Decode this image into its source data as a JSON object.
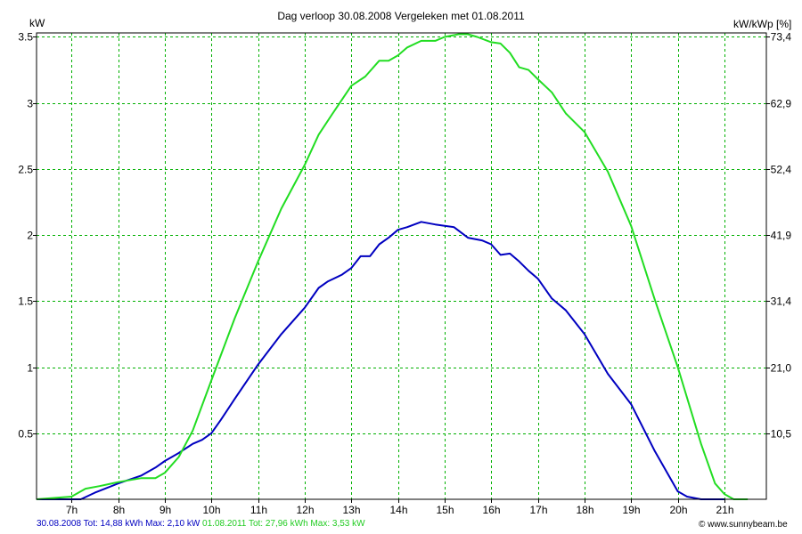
{
  "chart_data": {
    "type": "line",
    "title": "Dag  verloop 30.08.2008   Vergeleken met 01.08.2011",
    "ylabel_left": "kW",
    "ylabel_right": "kW/kWp [%]",
    "x_ticks": [
      "7h",
      "8h",
      "9h",
      "10h",
      "11h",
      "12h",
      "13h",
      "14h",
      "15h",
      "16h",
      "17h",
      "18h",
      "19h",
      "20h",
      "21h"
    ],
    "xlim": [
      6.25,
      21.9
    ],
    "ylim": [
      0,
      3.53
    ],
    "y_ticks": [
      0.5,
      1,
      1.5,
      2,
      2.5,
      3,
      3.5
    ],
    "y_tick_labels": [
      "0.5",
      "1",
      "1.5",
      "2",
      "2.5",
      "3",
      "3.5"
    ],
    "y_right_ticks": [
      0.5,
      1,
      1.5,
      2,
      2.5,
      3,
      3.5
    ],
    "y_right_tick_labels": [
      "10,5",
      "21,0",
      "31,4",
      "41,9",
      "52,4",
      "62,9",
      "73,4"
    ],
    "grid": true,
    "series": [
      {
        "name": "30.08.2008",
        "color": "#0000c0",
        "x": [
          6.25,
          7.0,
          7.2,
          7.5,
          8.0,
          8.5,
          8.8,
          9.0,
          9.3,
          9.6,
          9.8,
          10.0,
          10.2,
          10.5,
          11.0,
          11.5,
          12.0,
          12.3,
          12.5,
          12.8,
          13.0,
          13.2,
          13.4,
          13.6,
          13.8,
          14.0,
          14.2,
          14.5,
          14.8,
          15.0,
          15.2,
          15.5,
          15.8,
          16.0,
          16.2,
          16.4,
          16.6,
          16.8,
          17.0,
          17.3,
          17.6,
          18.0,
          18.5,
          19.0,
          19.5,
          20.0,
          20.2,
          20.5,
          21.0
        ],
        "values": [
          0,
          0,
          0,
          0.05,
          0.12,
          0.18,
          0.24,
          0.29,
          0.35,
          0.42,
          0.45,
          0.5,
          0.6,
          0.76,
          1.02,
          1.25,
          1.45,
          1.6,
          1.65,
          1.7,
          1.75,
          1.84,
          1.84,
          1.93,
          1.98,
          2.04,
          2.06,
          2.1,
          2.08,
          2.07,
          2.06,
          1.98,
          1.96,
          1.93,
          1.85,
          1.86,
          1.8,
          1.73,
          1.67,
          1.52,
          1.43,
          1.25,
          0.95,
          0.72,
          0.37,
          0.06,
          0.02,
          0,
          0
        ]
      },
      {
        "name": "01.08.2011",
        "color": "#22dd22",
        "x": [
          6.25,
          7.0,
          7.3,
          7.6,
          8.0,
          8.5,
          8.8,
          9.0,
          9.3,
          9.6,
          10.0,
          10.5,
          11.0,
          11.5,
          12.0,
          12.3,
          12.6,
          13.0,
          13.3,
          13.6,
          13.8,
          14.0,
          14.2,
          14.5,
          14.8,
          15.0,
          15.3,
          15.5,
          15.7,
          16.0,
          16.2,
          16.4,
          16.6,
          16.8,
          17.0,
          17.3,
          17.6,
          18.0,
          18.5,
          19.0,
          19.5,
          20.0,
          20.5,
          20.8,
          21.0,
          21.2,
          21.5
        ],
        "values": [
          0,
          0.02,
          0.08,
          0.1,
          0.13,
          0.16,
          0.16,
          0.2,
          0.32,
          0.52,
          0.9,
          1.37,
          1.8,
          2.2,
          2.53,
          2.76,
          2.92,
          3.13,
          3.2,
          3.32,
          3.32,
          3.36,
          3.42,
          3.47,
          3.47,
          3.5,
          3.52,
          3.52,
          3.5,
          3.46,
          3.45,
          3.38,
          3.27,
          3.25,
          3.18,
          3.08,
          2.92,
          2.78,
          2.48,
          2.07,
          1.52,
          1.0,
          0.42,
          0.12,
          0.04,
          0.0,
          0.0
        ]
      }
    ]
  },
  "footer": {
    "blue_text": "30.08.2008 Tot: 14,88 kWh Max: 2,10 kW",
    "green_text": "01.08.2011 Tot: 27,96 kWh Max: 3,53 kW",
    "blue_color": "#0000c0",
    "green_color": "#22cc22"
  },
  "copyright": "© www.sunnybeam.be"
}
